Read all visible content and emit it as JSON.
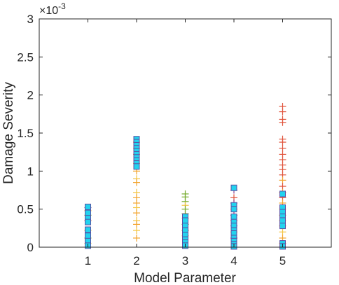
{
  "chart_data": {
    "type": "scatter",
    "xlabel": "Model Parameter",
    "ylabel": "Damage Severity",
    "exponent_label": "×10",
    "exponent_power": "-3",
    "xlim": [
      0,
      6
    ],
    "ylim": [
      0,
      3
    ],
    "xticks": [
      "1",
      "2",
      "3",
      "4",
      "5"
    ],
    "yticks": [
      "0",
      "0.5",
      "1",
      "1.5",
      "2",
      "2.5",
      "3"
    ],
    "grid": false,
    "marker_colors": {
      "square_fill": "#22d3ee",
      "square_edge": "#5a4fa3",
      "plus_red": "#e0523a",
      "plus_orange": "#f2a32c",
      "plus_yellow": "#f4c542",
      "plus_green": "#77ac30",
      "plus_purple": "#8b3f8f",
      "plus_cyan": "#4dbeee"
    },
    "series": [
      {
        "marker": "plus",
        "points": [
          {
            "x": 1,
            "y": 0.52,
            "c": "plus_purple"
          },
          {
            "x": 1,
            "y": 0.48,
            "c": "plus_orange"
          },
          {
            "x": 1,
            "y": 0.42,
            "c": "plus_green"
          },
          {
            "x": 1,
            "y": 0.35,
            "c": "plus_red"
          },
          {
            "x": 1,
            "y": 0.22,
            "c": "plus_orange"
          },
          {
            "x": 1,
            "y": 0.12,
            "c": "plus_green"
          },
          {
            "x": 1,
            "y": 0.05,
            "c": "plus_yellow"
          },
          {
            "x": 2,
            "y": 1.38,
            "c": "plus_orange"
          },
          {
            "x": 2,
            "y": 1.3,
            "c": "plus_yellow"
          },
          {
            "x": 2,
            "y": 1.22,
            "c": "plus_orange"
          },
          {
            "x": 2,
            "y": 1.1,
            "c": "plus_yellow"
          },
          {
            "x": 2,
            "y": 1.0,
            "c": "plus_orange"
          },
          {
            "x": 2,
            "y": 0.9,
            "c": "plus_yellow"
          },
          {
            "x": 2,
            "y": 0.85,
            "c": "plus_orange"
          },
          {
            "x": 2,
            "y": 0.72,
            "c": "plus_yellow"
          },
          {
            "x": 2,
            "y": 0.65,
            "c": "plus_orange"
          },
          {
            "x": 2,
            "y": 0.58,
            "c": "plus_orange"
          },
          {
            "x": 2,
            "y": 0.52,
            "c": "plus_yellow"
          },
          {
            "x": 2,
            "y": 0.45,
            "c": "plus_orange"
          },
          {
            "x": 2,
            "y": 0.35,
            "c": "plus_yellow"
          },
          {
            "x": 2,
            "y": 0.3,
            "c": "plus_orange"
          },
          {
            "x": 2,
            "y": 0.22,
            "c": "plus_yellow"
          },
          {
            "x": 2,
            "y": 0.12,
            "c": "plus_orange"
          },
          {
            "x": 3,
            "y": 0.7,
            "c": "plus_green"
          },
          {
            "x": 3,
            "y": 0.66,
            "c": "plus_green"
          },
          {
            "x": 3,
            "y": 0.6,
            "c": "plus_green"
          },
          {
            "x": 3,
            "y": 0.55,
            "c": "plus_yellow"
          },
          {
            "x": 3,
            "y": 0.5,
            "c": "plus_green"
          },
          {
            "x": 3,
            "y": 0.44,
            "c": "plus_green"
          },
          {
            "x": 3,
            "y": 0.38,
            "c": "plus_yellow"
          },
          {
            "x": 3,
            "y": 0.3,
            "c": "plus_green"
          },
          {
            "x": 3,
            "y": 0.22,
            "c": "plus_green"
          },
          {
            "x": 3,
            "y": 0.15,
            "c": "plus_yellow"
          },
          {
            "x": 4,
            "y": 0.75,
            "c": "plus_purple"
          },
          {
            "x": 4,
            "y": 0.65,
            "c": "plus_red"
          },
          {
            "x": 4,
            "y": 0.58,
            "c": "plus_purple"
          },
          {
            "x": 4,
            "y": 0.5,
            "c": "plus_orange"
          },
          {
            "x": 4,
            "y": 0.42,
            "c": "plus_purple"
          },
          {
            "x": 4,
            "y": 0.35,
            "c": "plus_red"
          },
          {
            "x": 4,
            "y": 0.28,
            "c": "plus_purple"
          },
          {
            "x": 4,
            "y": 0.2,
            "c": "plus_orange"
          },
          {
            "x": 4,
            "y": 0.12,
            "c": "plus_purple"
          },
          {
            "x": 5,
            "y": 1.85,
            "c": "plus_red"
          },
          {
            "x": 5,
            "y": 1.78,
            "c": "plus_red"
          },
          {
            "x": 5,
            "y": 1.68,
            "c": "plus_red"
          },
          {
            "x": 5,
            "y": 1.64,
            "c": "plus_red"
          },
          {
            "x": 5,
            "y": 1.42,
            "c": "plus_red"
          },
          {
            "x": 5,
            "y": 1.38,
            "c": "plus_red"
          },
          {
            "x": 5,
            "y": 1.3,
            "c": "plus_red"
          },
          {
            "x": 5,
            "y": 1.22,
            "c": "plus_red"
          },
          {
            "x": 5,
            "y": 1.15,
            "c": "plus_red"
          },
          {
            "x": 5,
            "y": 1.08,
            "c": "plus_red"
          },
          {
            "x": 5,
            "y": 1.02,
            "c": "plus_red"
          },
          {
            "x": 5,
            "y": 0.95,
            "c": "plus_red"
          },
          {
            "x": 5,
            "y": 0.88,
            "c": "plus_orange"
          },
          {
            "x": 5,
            "y": 0.8,
            "c": "plus_red"
          },
          {
            "x": 5,
            "y": 0.72,
            "c": "plus_orange"
          },
          {
            "x": 5,
            "y": 0.65,
            "c": "plus_red"
          },
          {
            "x": 5,
            "y": 0.58,
            "c": "plus_orange"
          },
          {
            "x": 5,
            "y": 0.5,
            "c": "plus_yellow"
          },
          {
            "x": 5,
            "y": 0.42,
            "c": "plus_orange"
          },
          {
            "x": 5,
            "y": 0.35,
            "c": "plus_yellow"
          },
          {
            "x": 5,
            "y": 0.28,
            "c": "plus_orange"
          },
          {
            "x": 5,
            "y": 0.2,
            "c": "plus_yellow"
          },
          {
            "x": 5,
            "y": 0.12,
            "c": "plus_orange"
          },
          {
            "x": 5,
            "y": 0.05,
            "c": "plus_yellow"
          }
        ]
      },
      {
        "marker": "square",
        "points": [
          {
            "x": 1,
            "y": 0.53
          },
          {
            "x": 1,
            "y": 0.45
          },
          {
            "x": 1,
            "y": 0.38
          },
          {
            "x": 1,
            "y": 0.33
          },
          {
            "x": 1,
            "y": 0.23
          },
          {
            "x": 1,
            "y": 0.15
          },
          {
            "x": 1,
            "y": 0.08
          },
          {
            "x": 1,
            "y": 0.02
          },
          {
            "x": 2,
            "y": 1.42
          },
          {
            "x": 2,
            "y": 1.38
          },
          {
            "x": 2,
            "y": 1.34
          },
          {
            "x": 2,
            "y": 1.3
          },
          {
            "x": 2,
            "y": 1.26
          },
          {
            "x": 2,
            "y": 1.22
          },
          {
            "x": 2,
            "y": 1.18
          },
          {
            "x": 2,
            "y": 1.14
          },
          {
            "x": 2,
            "y": 1.1
          },
          {
            "x": 2,
            "y": 1.06
          },
          {
            "x": 3,
            "y": 0.4
          },
          {
            "x": 3,
            "y": 0.35
          },
          {
            "x": 3,
            "y": 0.28
          },
          {
            "x": 3,
            "y": 0.22
          },
          {
            "x": 3,
            "y": 0.16
          },
          {
            "x": 3,
            "y": 0.1
          },
          {
            "x": 3,
            "y": 0.06
          },
          {
            "x": 3,
            "y": 0.02
          },
          {
            "x": 4,
            "y": 0.78
          },
          {
            "x": 4,
            "y": 0.55
          },
          {
            "x": 4,
            "y": 0.5
          },
          {
            "x": 4,
            "y": 0.4
          },
          {
            "x": 4,
            "y": 0.33
          },
          {
            "x": 4,
            "y": 0.28
          },
          {
            "x": 4,
            "y": 0.22
          },
          {
            "x": 4,
            "y": 0.18
          },
          {
            "x": 4,
            "y": 0.12
          },
          {
            "x": 4,
            "y": 0.08
          },
          {
            "x": 4,
            "y": 0.04
          },
          {
            "x": 4,
            "y": 0.01
          },
          {
            "x": 5,
            "y": 0.7
          },
          {
            "x": 5,
            "y": 0.52
          },
          {
            "x": 5,
            "y": 0.46
          },
          {
            "x": 5,
            "y": 0.4
          },
          {
            "x": 5,
            "y": 0.35
          },
          {
            "x": 5,
            "y": 0.28
          },
          {
            "x": 5,
            "y": 0.05
          },
          {
            "x": 5,
            "y": 0.01
          }
        ]
      }
    ]
  }
}
